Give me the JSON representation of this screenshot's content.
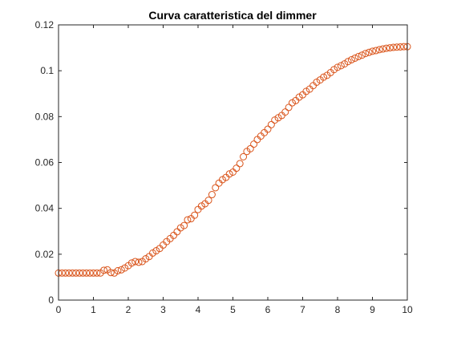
{
  "chart_data": {
    "type": "scatter",
    "title": "Curva caratteristica del dimmer",
    "xlabel": "",
    "ylabel": "",
    "xlim": [
      0,
      10
    ],
    "ylim": [
      0,
      0.12
    ],
    "xticks": [
      0,
      1,
      2,
      3,
      4,
      5,
      6,
      7,
      8,
      9,
      10
    ],
    "xtick_labels": [
      "0",
      "1",
      "2",
      "3",
      "4",
      "5",
      "6",
      "7",
      "8",
      "9",
      "10"
    ],
    "yticks": [
      0,
      0.02,
      0.04,
      0.06,
      0.08,
      0.1,
      0.12
    ],
    "ytick_labels": [
      "0",
      "0.02",
      "0.04",
      "0.06",
      "0.08",
      "0.1",
      "0.12"
    ],
    "grid": false,
    "marker": "circle",
    "marker_color": "#D95319",
    "series": [
      {
        "x": [
          0,
          0.1,
          0.2,
          0.3,
          0.4,
          0.5,
          0.6,
          0.7,
          0.8,
          0.9,
          1.0,
          1.1,
          1.2,
          1.3,
          1.4,
          1.5,
          1.6,
          1.7,
          1.8,
          1.9,
          2.0,
          2.1,
          2.2,
          2.3,
          2.4,
          2.5,
          2.6,
          2.7,
          2.8,
          2.9,
          3.0,
          3.1,
          3.2,
          3.3,
          3.4,
          3.5,
          3.6,
          3.7,
          3.8,
          3.9,
          4.0,
          4.1,
          4.2,
          4.3,
          4.4,
          4.5,
          4.6,
          4.7,
          4.8,
          4.9,
          5.0,
          5.1,
          5.2,
          5.3,
          5.4,
          5.5,
          5.6,
          5.7,
          5.8,
          5.9,
          6.0,
          6.1,
          6.2,
          6.3,
          6.4,
          6.5,
          6.6,
          6.7,
          6.8,
          6.9,
          7.0,
          7.1,
          7.2,
          7.3,
          7.4,
          7.5,
          7.6,
          7.7,
          7.8,
          7.9,
          8.0,
          8.1,
          8.2,
          8.3,
          8.4,
          8.5,
          8.6,
          8.7,
          8.8,
          8.9,
          9.0,
          9.1,
          9.2,
          9.3,
          9.4,
          9.5,
          9.6,
          9.7,
          9.8,
          9.9,
          10.0
        ],
        "y": [
          0.0118,
          0.0118,
          0.0118,
          0.0118,
          0.0118,
          0.0118,
          0.0118,
          0.0118,
          0.0118,
          0.0118,
          0.0118,
          0.0118,
          0.0118,
          0.013,
          0.0132,
          0.012,
          0.0118,
          0.0128,
          0.0132,
          0.014,
          0.015,
          0.0162,
          0.0168,
          0.0165,
          0.0168,
          0.018,
          0.019,
          0.0205,
          0.0215,
          0.0225,
          0.024,
          0.0255,
          0.0268,
          0.0282,
          0.0298,
          0.0315,
          0.0325,
          0.035,
          0.0355,
          0.037,
          0.0395,
          0.041,
          0.042,
          0.0435,
          0.046,
          0.049,
          0.051,
          0.0525,
          0.0535,
          0.055,
          0.0558,
          0.0575,
          0.0595,
          0.0625,
          0.0648,
          0.066,
          0.068,
          0.07,
          0.0715,
          0.073,
          0.0745,
          0.0765,
          0.0785,
          0.0795,
          0.0805,
          0.082,
          0.084,
          0.086,
          0.087,
          0.0885,
          0.0895,
          0.091,
          0.092,
          0.0935,
          0.095,
          0.096,
          0.0972,
          0.098,
          0.0992,
          0.1005,
          0.1015,
          0.1022,
          0.103,
          0.104,
          0.1048,
          0.1055,
          0.1062,
          0.1068,
          0.1075,
          0.108,
          0.1085,
          0.1088,
          0.1092,
          0.1095,
          0.1098,
          0.11,
          0.1102,
          0.1103,
          0.1104,
          0.1105,
          0.1105
        ]
      }
    ]
  }
}
